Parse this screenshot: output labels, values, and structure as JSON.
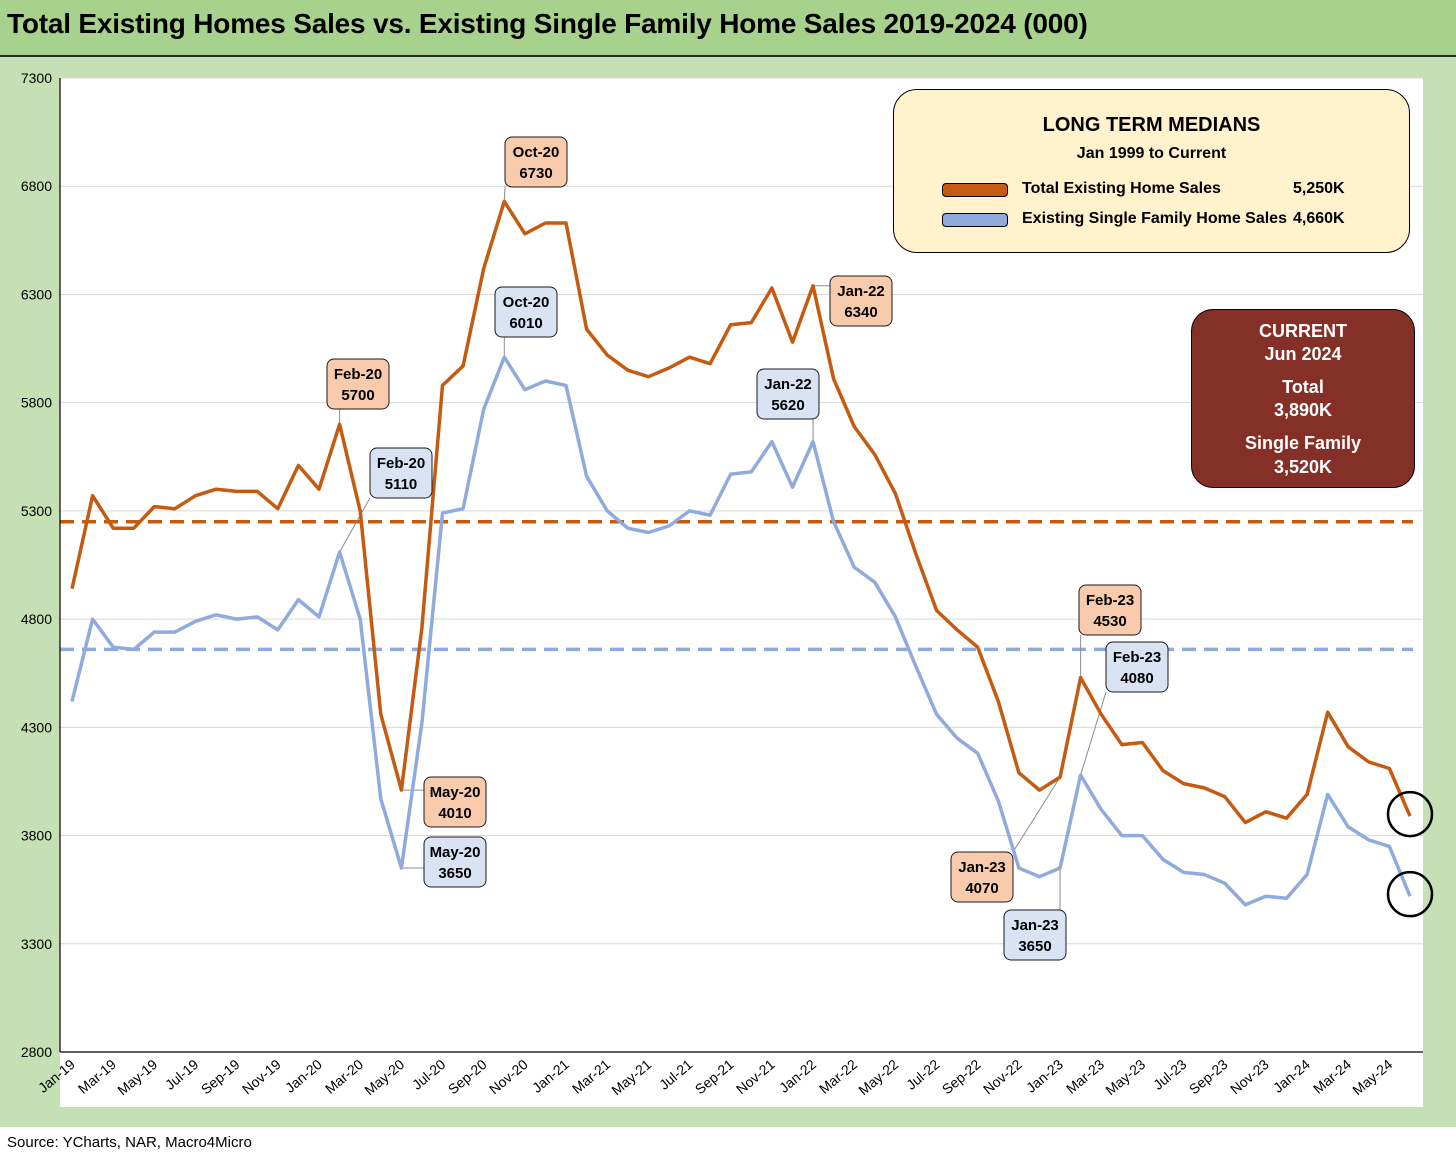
{
  "title": "Total Existing Homes Sales vs. Existing Single Family Home Sales 2019-2024 (000)",
  "source": "Source: YCharts, NAR, Macro4Micro",
  "legend": {
    "title": "LONG TERM MEDIANS",
    "subtitle": "Jan 1999 to Current",
    "items": [
      {
        "label": "Total Existing Home Sales",
        "value": "5,250K",
        "color": "#c55a11"
      },
      {
        "label": "Existing Single Family Home Sales",
        "value": "4,660K",
        "color": "#8faadc"
      }
    ]
  },
  "current": {
    "title": "CURRENT",
    "date": "Jun 2024",
    "total_label": "Total",
    "total_value": "3,890K",
    "sf_label": "Single Family",
    "sf_value": "3,520K"
  },
  "chart_data": {
    "type": "line",
    "title": "Total Existing Homes Sales vs. Existing Single Family Home Sales 2019-2024 (000)",
    "ylim": [
      2800,
      7300
    ],
    "yticks": [
      2800,
      3300,
      3800,
      4300,
      4800,
      5300,
      5800,
      6300,
      6800,
      7300
    ],
    "x_tick_labels": [
      "Jan-19",
      "Mar-19",
      "May-19",
      "Jul-19",
      "Sep-19",
      "Nov-19",
      "Jan-20",
      "Mar-20",
      "May-20",
      "Jul-20",
      "Sep-20",
      "Nov-20",
      "Jan-21",
      "Mar-21",
      "May-21",
      "Jul-21",
      "Sep-21",
      "Nov-21",
      "Jan-22",
      "Mar-22",
      "May-22",
      "Jul-22",
      "Sep-22",
      "Nov-22",
      "Jan-23",
      "Mar-23",
      "May-23",
      "Jul-23",
      "Sep-23",
      "Nov-23",
      "Jan-24",
      "Mar-24",
      "May-24"
    ],
    "months": [
      "Jan-19",
      "Feb-19",
      "Mar-19",
      "Apr-19",
      "May-19",
      "Jun-19",
      "Jul-19",
      "Aug-19",
      "Sep-19",
      "Oct-19",
      "Nov-19",
      "Dec-19",
      "Jan-20",
      "Feb-20",
      "Mar-20",
      "Apr-20",
      "May-20",
      "Jun-20",
      "Jul-20",
      "Aug-20",
      "Sep-20",
      "Oct-20",
      "Nov-20",
      "Dec-20",
      "Jan-21",
      "Feb-21",
      "Mar-21",
      "Apr-21",
      "May-21",
      "Jun-21",
      "Jul-21",
      "Aug-21",
      "Sep-21",
      "Oct-21",
      "Nov-21",
      "Dec-21",
      "Jan-22",
      "Feb-22",
      "Mar-22",
      "Apr-22",
      "May-22",
      "Jun-22",
      "Jul-22",
      "Aug-22",
      "Sep-22",
      "Oct-22",
      "Nov-22",
      "Dec-22",
      "Jan-23",
      "Feb-23",
      "Mar-23",
      "Apr-23",
      "May-23",
      "Jun-23",
      "Jul-23",
      "Aug-23",
      "Sep-23",
      "Oct-23",
      "Nov-23",
      "Dec-23",
      "Jan-24",
      "Feb-24",
      "Mar-24",
      "Apr-24",
      "May-24",
      "Jun-24"
    ],
    "series": [
      {
        "name": "Total Existing Home Sales",
        "color": "#c55a11",
        "median": 5250,
        "values": [
          4940,
          5370,
          5220,
          5220,
          5320,
          5310,
          5370,
          5400,
          5390,
          5390,
          5310,
          5510,
          5400,
          5700,
          5300,
          4360,
          4010,
          4760,
          5880,
          5970,
          6420,
          6730,
          6580,
          6630,
          6630,
          6140,
          6020,
          5950,
          5920,
          5960,
          6010,
          5980,
          6160,
          6170,
          6330,
          6080,
          6340,
          5910,
          5690,
          5560,
          5380,
          5100,
          4840,
          4750,
          4670,
          4420,
          4090,
          4010,
          4070,
          4530,
          4360,
          4220,
          4230,
          4100,
          4040,
          4020,
          3980,
          3860,
          3910,
          3880,
          3990,
          4370,
          4210,
          4140,
          4110,
          3890
        ]
      },
      {
        "name": "Existing Single Family Home Sales",
        "color": "#8faadc",
        "median": 4660,
        "values": [
          4420,
          4800,
          4670,
          4660,
          4740,
          4740,
          4790,
          4820,
          4800,
          4810,
          4750,
          4890,
          4810,
          5110,
          4800,
          3970,
          3650,
          4320,
          5290,
          5310,
          5770,
          6010,
          5860,
          5900,
          5880,
          5460,
          5300,
          5220,
          5200,
          5230,
          5300,
          5280,
          5470,
          5480,
          5620,
          5410,
          5620,
          5250,
          5040,
          4970,
          4810,
          4580,
          4360,
          4250,
          4180,
          3960,
          3650,
          3610,
          3650,
          4080,
          3920,
          3800,
          3800,
          3690,
          3630,
          3620,
          3580,
          3480,
          3520,
          3510,
          3620,
          3990,
          3840,
          3780,
          3750,
          3520
        ]
      }
    ],
    "annotations": [
      {
        "series": 0,
        "month": "Feb-20",
        "text1": "Feb-20",
        "text2": "5700"
      },
      {
        "series": 1,
        "month": "Feb-20",
        "text1": "Feb-20",
        "text2": "5110"
      },
      {
        "series": 0,
        "month": "May-20",
        "text1": "May-20",
        "text2": "4010"
      },
      {
        "series": 1,
        "month": "May-20",
        "text1": "May-20",
        "text2": "3650"
      },
      {
        "series": 0,
        "month": "Oct-20",
        "text1": "Oct-20",
        "text2": "6730"
      },
      {
        "series": 1,
        "month": "Oct-20",
        "text1": "Oct-20",
        "text2": "6010"
      },
      {
        "series": 0,
        "month": "Jan-22",
        "text1": "Jan-22",
        "text2": "6340"
      },
      {
        "series": 1,
        "month": "Jan-22",
        "text1": "Jan-22",
        "text2": "5620"
      },
      {
        "series": 0,
        "month": "Jan-23",
        "text1": "Jan-23",
        "text2": "4070"
      },
      {
        "series": 1,
        "month": "Jan-23",
        "text1": "Jan-23",
        "text2": "3650"
      },
      {
        "series": 0,
        "month": "Feb-23",
        "text1": "Feb-23",
        "text2": "4530"
      },
      {
        "series": 1,
        "month": "Feb-23",
        "text1": "Feb-23",
        "text2": "4080"
      }
    ]
  }
}
